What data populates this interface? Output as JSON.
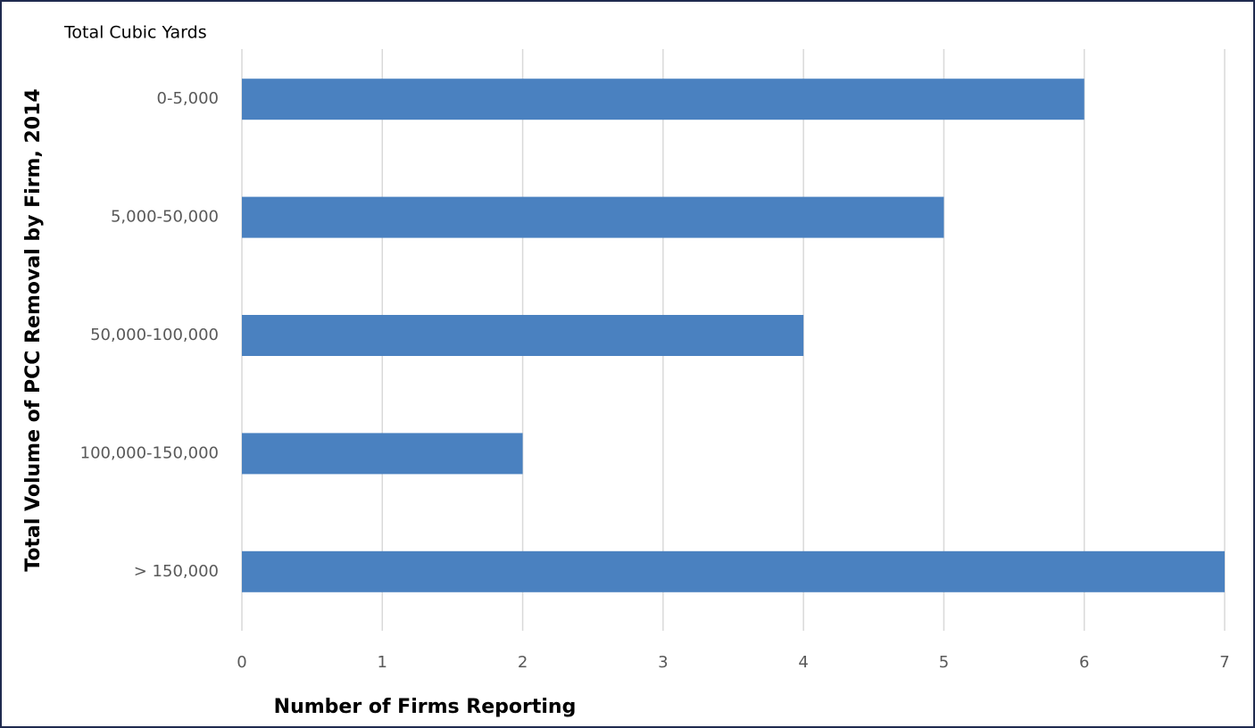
{
  "chart_data": {
    "type": "bar",
    "orientation": "horizontal",
    "title": "Total Cubic Yards",
    "x_label": "Number of Firms Reporting",
    "y_label": "Total Volume of PCC Removal by Firm, 2014",
    "categories": [
      "0-5,000",
      "5,000-50,000",
      "50,000-100,000",
      "100,000-150,000",
      "> 150,000"
    ],
    "values": [
      6,
      5,
      4,
      2,
      7
    ],
    "color": "#4a81c0",
    "xlim": [
      0,
      7
    ],
    "xticks": [
      0,
      1,
      2,
      3,
      4,
      5,
      6,
      7
    ],
    "grid": true
  }
}
